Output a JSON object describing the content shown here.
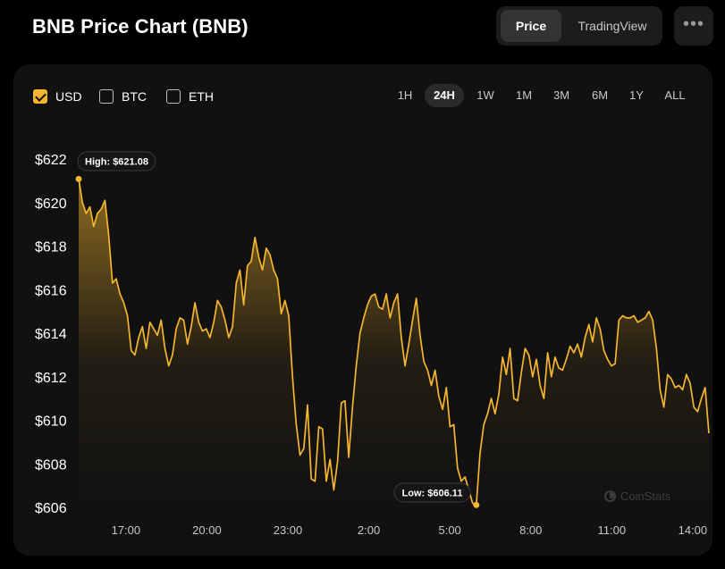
{
  "header": {
    "title": "BNB Price Chart (BNB)",
    "toggle": [
      "Price",
      "TradingView"
    ],
    "more_label": "•••"
  },
  "currencies": [
    {
      "label": "USD",
      "checked": true
    },
    {
      "label": "BTC",
      "checked": false
    },
    {
      "label": "ETH",
      "checked": false
    }
  ],
  "ranges": [
    "1H",
    "24H",
    "1W",
    "1M",
    "3M",
    "6M",
    "1Y",
    "ALL"
  ],
  "active_range": "24H",
  "watermark": "CoinStats",
  "colors": {
    "line": "#f5b52e",
    "background": "#111111",
    "page": "#000000"
  },
  "chart_data": {
    "type": "area",
    "ylim": [
      606,
      622
    ],
    "ytick_values": [
      606,
      608,
      610,
      612,
      614,
      616,
      618,
      620,
      622
    ],
    "ytick_labels": [
      "$606",
      "$608",
      "$610",
      "$612",
      "$614",
      "$616",
      "$618",
      "$620",
      "$622"
    ],
    "x_hours_range": [
      15.25,
      14.6
    ],
    "xtick_labels": [
      "17:00",
      "20:00",
      "23:00",
      "2:00",
      "5:00",
      "8:00",
      "11:00",
      "14:00"
    ],
    "high": {
      "label": "High: $621.08",
      "value": 621.08
    },
    "low": {
      "label": "Low: $606.11",
      "value": 606.11
    },
    "prices": [
      621.1,
      620,
      619.5,
      619.8,
      618.9,
      619.5,
      619.7,
      620.1,
      618.5,
      616.3,
      616.5,
      615.8,
      615.4,
      614.8,
      613.2,
      613,
      613.8,
      614.3,
      613.3,
      614.5,
      614.2,
      613.9,
      614.6,
      613.3,
      612.5,
      613,
      614.2,
      614.7,
      614.6,
      613.5,
      614.3,
      615.4,
      614.5,
      614.1,
      614.2,
      613.8,
      614.5,
      615.5,
      615.2,
      614.6,
      613.8,
      614.3,
      616.3,
      616.9,
      615.3,
      617.1,
      617.3,
      618.4,
      617.5,
      616.9,
      617.9,
      617.6,
      616.9,
      616.5,
      614.9,
      615.5,
      614.8,
      612,
      609.8,
      608.4,
      608.7,
      610.7,
      607.3,
      607.2,
      609.7,
      609.6,
      607.2,
      608.2,
      606.8,
      608.1,
      610.8,
      610.9,
      608.3,
      610.6,
      612.5,
      614,
      614.7,
      615.3,
      615.7,
      615.8,
      615.2,
      615.1,
      615.8,
      614.7,
      615.4,
      615.8,
      613.8,
      612.5,
      613.5,
      614.6,
      615.6,
      613.9,
      612.7,
      612.3,
      611.6,
      612.3,
      611.1,
      610.5,
      611.5,
      609.7,
      609.8,
      607.8,
      607.2,
      607.4,
      606.8,
      606.2,
      606.1,
      608.5,
      609.8,
      610.3,
      611,
      610.3,
      611.2,
      612.9,
      612.1,
      613.3,
      611,
      610.9,
      612.2,
      613.3,
      613,
      612,
      612.8,
      611.6,
      611,
      613.1,
      612,
      612.9,
      612.4,
      612.3,
      612.8,
      613.4,
      613.1,
      613.5,
      612.9,
      613.8,
      614.4,
      613.6,
      614.7,
      614.2,
      613.2,
      612.8,
      612.5,
      612.6,
      614.6,
      614.8,
      614.7,
      614.7,
      614.8,
      614.5,
      614.6,
      614.7,
      615,
      614.6,
      613.3,
      611.4,
      610.6,
      612.1,
      611.9,
      611.5,
      611.6,
      611.4,
      612.1,
      611.7,
      610.6,
      610.4,
      611,
      611.5,
      609.4
    ]
  }
}
